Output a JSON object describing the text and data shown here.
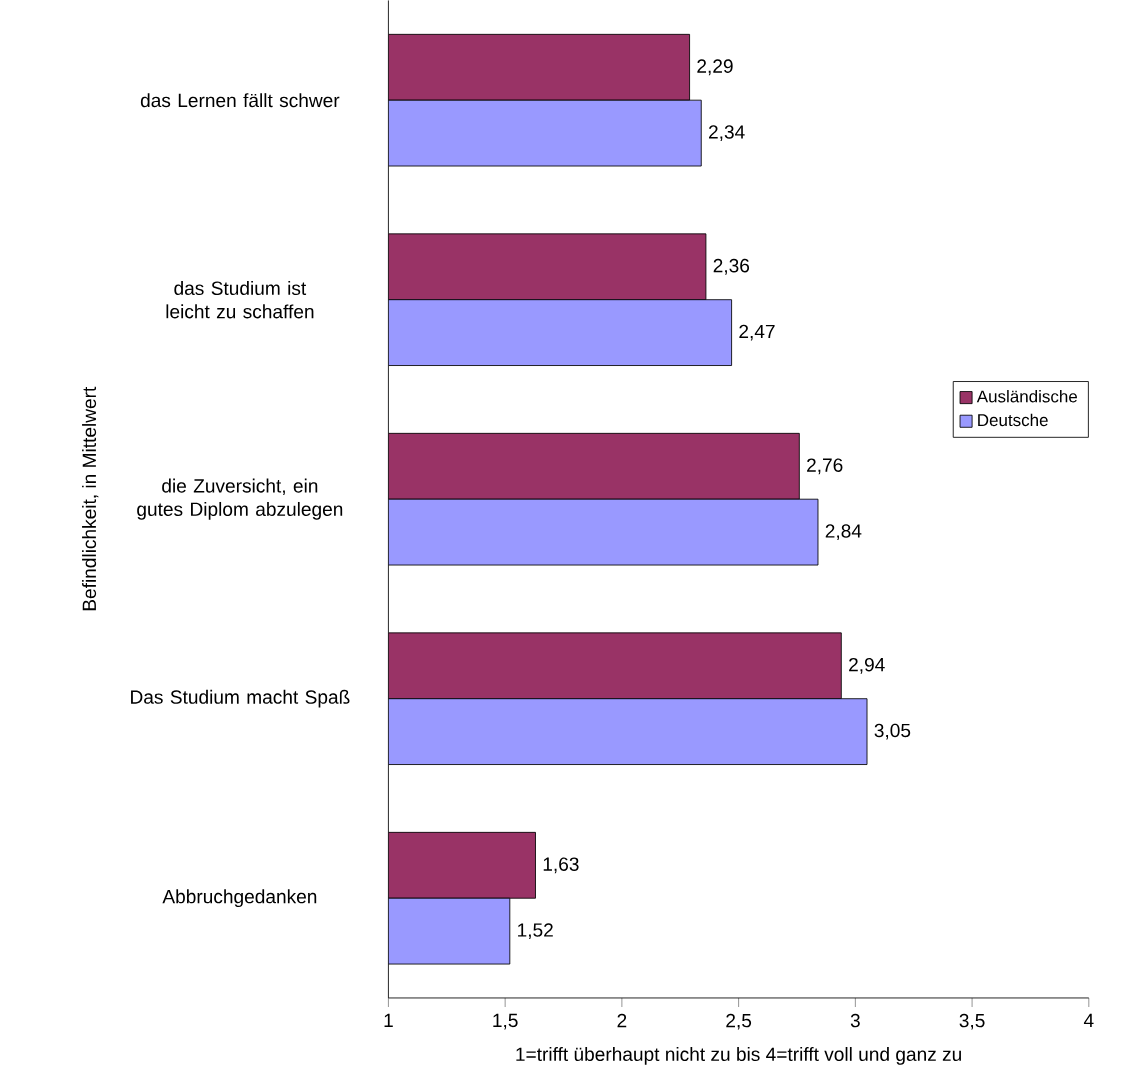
{
  "chart_data": {
    "type": "bar",
    "orientation": "horizontal",
    "categories": [
      "das Lernen fällt schwer",
      "das Studium ist leicht zu schaffen",
      "die Zuversicht, ein gutes Diplom abzulegen",
      "Das Studium macht Spaß",
      "Abbruchgedanken"
    ],
    "series": [
      {
        "name": "Ausländische",
        "color": "#993366",
        "values": [
          2.29,
          2.36,
          2.76,
          2.94,
          1.63
        ],
        "value_labels": [
          "2,29",
          "2,36",
          "2,76",
          "2,94",
          "1,63"
        ]
      },
      {
        "name": "Deutsche",
        "color": "#9999ff",
        "values": [
          2.34,
          2.47,
          2.84,
          3.05,
          1.52
        ],
        "value_labels": [
          "2,34",
          "2,47",
          "2,84",
          "3,05",
          "1,52"
        ]
      }
    ],
    "xlim": [
      1,
      4
    ],
    "xticks": [
      1,
      {
        "value": 1.5,
        "label": "1,5"
      },
      2,
      {
        "value": 2.5,
        "label": "2,5"
      },
      3,
      {
        "value": 3.5,
        "label": "3,5"
      },
      4
    ],
    "xlabel": "1=trifft überhaupt nicht zu bis 4=trifft voll und ganz zu",
    "ylabel": "Befindlichkeit, in Mittelwert",
    "legend": "right"
  }
}
